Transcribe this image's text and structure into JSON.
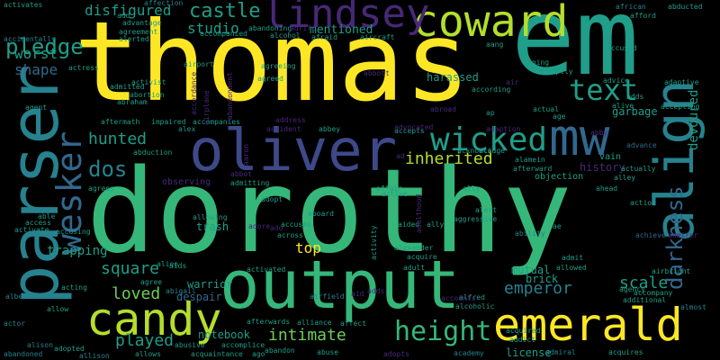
{
  "palette": {
    "yellow": "#fde725",
    "lime": "#b5de2b",
    "green": "#6ece58",
    "teal_green": "#35b779",
    "teal": "#1f9e89",
    "cyan": "#26828e",
    "blue": "#31688e",
    "indigo": "#3e4989",
    "purple": "#482878",
    "dark_purple": "#440154"
  },
  "words": [
    {
      "id": "thomas",
      "text": "thomas"
    },
    {
      "id": "dorothy",
      "text": "dorothy"
    },
    {
      "id": "em",
      "text": "em"
    },
    {
      "id": "parser",
      "text": "parser"
    },
    {
      "id": "output",
      "text": "output"
    },
    {
      "id": "oliver",
      "text": "oliver"
    },
    {
      "id": "coward",
      "text": "coward"
    },
    {
      "id": "lindsey",
      "text": "lindsey"
    },
    {
      "id": "mw",
      "text": "mw"
    },
    {
      "id": "align",
      "text": "align"
    },
    {
      "id": "candy",
      "text": "candy"
    },
    {
      "id": "emerald",
      "text": "emerald"
    },
    {
      "id": "wesker",
      "text": "wesker"
    },
    {
      "id": "wicked",
      "text": "wicked"
    },
    {
      "id": "text",
      "text": "text"
    },
    {
      "id": "height",
      "text": "height"
    },
    {
      "id": "darkness",
      "text": "darkness"
    },
    {
      "id": "pledge",
      "text": "pledge"
    },
    {
      "id": "castle",
      "text": "castle"
    },
    {
      "id": "disfigured",
      "text": "disfigured"
    },
    {
      "id": "dos",
      "text": "dos"
    },
    {
      "id": "hunted",
      "text": "hunted"
    },
    {
      "id": "square",
      "text": "square"
    },
    {
      "id": "loved",
      "text": "loved"
    },
    {
      "id": "played",
      "text": "played"
    },
    {
      "id": "intimate",
      "text": "intimate"
    },
    {
      "id": "inherited",
      "text": "inherited"
    },
    {
      "id": "emperor",
      "text": "emperor"
    },
    {
      "id": "scale",
      "text": "scale"
    },
    {
      "id": "worst",
      "text": "worst"
    },
    {
      "id": "shape",
      "text": "shape"
    },
    {
      "id": "studio",
      "text": "studio"
    },
    {
      "id": "mentioned",
      "text": "mentioned"
    },
    {
      "id": "top",
      "text": "top"
    },
    {
      "id": "trapping",
      "text": "trapping"
    },
    {
      "id": "devoured",
      "text": "devoured"
    },
    {
      "id": "garbage",
      "text": "garbage"
    },
    {
      "id": "history",
      "text": "history"
    },
    {
      "id": "notebook",
      "text": "notebook"
    },
    {
      "id": "mutual",
      "text": "mutual"
    },
    {
      "id": "brick",
      "text": "brick"
    },
    {
      "id": "license",
      "text": "license"
    },
    {
      "id": "warrior",
      "text": "warrior"
    },
    {
      "id": "despair",
      "text": "despair"
    },
    {
      "id": "trash",
      "text": "trash"
    },
    {
      "id": "harassed",
      "text": "harassed"
    },
    {
      "id": "vain",
      "text": "vain"
    },
    {
      "id": "objection",
      "text": "objection"
    },
    {
      "id": "alliance",
      "text": "alliance"
    },
    {
      "id": "academy",
      "text": "academy"
    },
    {
      "id": "abandoned",
      "text": "abandoned"
    },
    {
      "id": "adopted",
      "text": "adopted"
    },
    {
      "id": "ability",
      "text": "ability"
    },
    {
      "id": "accusing",
      "text": "accusing"
    },
    {
      "id": "activate",
      "text": "activate"
    },
    {
      "id": "actress",
      "text": "actress"
    },
    {
      "id": "airport",
      "text": "airport"
    },
    {
      "id": "affection",
      "text": "affection"
    },
    {
      "id": "african",
      "text": "african"
    },
    {
      "id": "abducted",
      "text": "abducted"
    },
    {
      "id": "afford",
      "text": "afford"
    },
    {
      "id": "accused",
      "text": "accused"
    },
    {
      "id": "advice",
      "text": "advice"
    },
    {
      "id": "abruptly",
      "text": "abruptly"
    },
    {
      "id": "according",
      "text": "according"
    },
    {
      "id": "accepting",
      "text": "accepting"
    },
    {
      "id": "aftermath",
      "text": "aftermath"
    },
    {
      "id": "impaired",
      "text": "impaired"
    },
    {
      "id": "accompanies",
      "text": "accompanies"
    },
    {
      "id": "acknowledge",
      "text": "acknowledge"
    },
    {
      "id": "afterward",
      "text": "afterward"
    },
    {
      "id": "abbey",
      "text": "abbey"
    },
    {
      "id": "accepts",
      "text": "accepts"
    },
    {
      "id": "aggressive",
      "text": "aggressive"
    },
    {
      "id": "alexander",
      "text": "alexander"
    },
    {
      "id": "acquire",
      "text": "acquire"
    },
    {
      "id": "admit",
      "text": "admit"
    },
    {
      "id": "allowed",
      "text": "allowed"
    },
    {
      "id": "adult",
      "text": "adult"
    },
    {
      "id": "alfred",
      "text": "alfred"
    },
    {
      "id": "alcoholic",
      "text": "alcoholic"
    },
    {
      "id": "acquired",
      "text": "acquired"
    },
    {
      "id": "addict",
      "text": "addict"
    },
    {
      "id": "admiral",
      "text": "admiral"
    },
    {
      "id": "acquires",
      "text": "acquires"
    },
    {
      "id": "accompany",
      "text": "accompany"
    },
    {
      "id": "additional",
      "text": "additional"
    },
    {
      "id": "airbright",
      "text": "airbright"
    },
    {
      "id": "almost",
      "text": "almost"
    },
    {
      "id": "agency",
      "text": "agency"
    },
    {
      "id": "actually",
      "text": "actually"
    },
    {
      "id": "action",
      "text": "action"
    },
    {
      "id": "alley",
      "text": "alley"
    },
    {
      "id": "ahead",
      "text": "ahead"
    },
    {
      "id": "advance",
      "text": "advance"
    },
    {
      "id": "achieve",
      "text": "achieve"
    },
    {
      "id": "activated",
      "text": "activated"
    },
    {
      "id": "across",
      "text": "across"
    },
    {
      "id": "accuses",
      "text": "accuses"
    },
    {
      "id": "allowing",
      "text": "allowing"
    },
    {
      "id": "adopt",
      "text": "adopt"
    },
    {
      "id": "admitting",
      "text": "admitting"
    },
    {
      "id": "observing",
      "text": "observing"
    },
    {
      "id": "afterwards",
      "text": "afterwards"
    },
    {
      "id": "accomplice",
      "text": "accomplice"
    },
    {
      "id": "acquaintance",
      "text": "acquaintance"
    },
    {
      "id": "abandon",
      "text": "abandon"
    },
    {
      "id": "abuse",
      "text": "abuse"
    },
    {
      "id": "affect",
      "text": "affect"
    },
    {
      "id": "abusive",
      "text": "abusive"
    },
    {
      "id": "alison",
      "text": "alison"
    },
    {
      "id": "allison",
      "text": "allison"
    },
    {
      "id": "allows",
      "text": "allows"
    },
    {
      "id": "agree",
      "text": "agree"
    },
    {
      "id": "abigail",
      "text": "abigail"
    },
    {
      "id": "acting",
      "text": "acting"
    },
    {
      "id": "albert",
      "text": "albert"
    },
    {
      "id": "actor",
      "text": "actor"
    },
    {
      "id": "access",
      "text": "access"
    },
    {
      "id": "able",
      "text": "able"
    },
    {
      "id": "agrees",
      "text": "agrees"
    },
    {
      "id": "abduction",
      "text": "abduction"
    },
    {
      "id": "alex",
      "text": "alex"
    },
    {
      "id": "admitted",
      "text": "admitted"
    },
    {
      "id": "abortion",
      "text": "abortion"
    },
    {
      "id": "abraham",
      "text": "abraham"
    },
    {
      "id": "activist",
      "text": "activist"
    },
    {
      "id": "agreeing",
      "text": "agreeing"
    },
    {
      "id": "agreed",
      "text": "agreed"
    },
    {
      "id": "aircraft",
      "text": "aircraft"
    },
    {
      "id": "afraid",
      "text": "afraid"
    },
    {
      "id": "alcohol",
      "text": "alcohol"
    },
    {
      "id": "abandoning",
      "text": "abandoning"
    },
    {
      "id": "accompanied",
      "text": "accompanied"
    },
    {
      "id": "agreement",
      "text": "agreement"
    },
    {
      "id": "alerted",
      "text": "alerted"
    },
    {
      "id": "advantage",
      "text": "advantage"
    },
    {
      "id": "add",
      "text": "add"
    },
    {
      "id": "activates",
      "text": "activates"
    },
    {
      "id": "accidentally",
      "text": "accidentally"
    },
    {
      "id": "aging",
      "text": "aging"
    },
    {
      "id": "aang",
      "text": "aang"
    },
    {
      "id": "actual",
      "text": "actual"
    },
    {
      "id": "age",
      "text": "age"
    },
    {
      "id": "alive",
      "text": "alive"
    },
    {
      "id": "acid",
      "text": "acid"
    },
    {
      "id": "alamein",
      "text": "alamein"
    },
    {
      "id": "adaptive",
      "text": "adaptive"
    },
    {
      "id": "affair",
      "text": "affair"
    },
    {
      "id": "active",
      "text": "active"
    },
    {
      "id": "aided",
      "text": "aided"
    },
    {
      "id": "ally",
      "text": "ally"
    },
    {
      "id": "alert",
      "text": "alert"
    },
    {
      "id": "aaron",
      "text": "aaron"
    },
    {
      "id": "agent",
      "text": "agent"
    },
    {
      "id": "address",
      "text": "address"
    },
    {
      "id": "abbott",
      "text": "abbott"
    },
    {
      "id": "advocated",
      "text": "advocated"
    },
    {
      "id": "activity",
      "text": "activity"
    },
    {
      "id": "adore",
      "text": "adore"
    },
    {
      "id": "airplane",
      "text": "airplane"
    },
    {
      "id": "abandonment",
      "text": "abandonment"
    },
    {
      "id": "accordance",
      "text": "accordance"
    },
    {
      "id": "air",
      "text": "air"
    },
    {
      "id": "airfield",
      "text": "airfield"
    },
    {
      "id": "alien",
      "text": "alien"
    },
    {
      "id": "accident",
      "text": "accident"
    },
    {
      "id": "ado",
      "text": "ado"
    },
    {
      "id": "aids",
      "text": "aids"
    },
    {
      "id": "aboard",
      "text": "aboard"
    },
    {
      "id": "abroad",
      "text": "abroad"
    },
    {
      "id": "abby",
      "text": "abby"
    },
    {
      "id": "adds",
      "text": "adds"
    },
    {
      "id": "adopts",
      "text": "adopts"
    },
    {
      "id": "allow",
      "text": "allow"
    },
    {
      "id": "adaption",
      "text": "adaption"
    },
    {
      "id": "adulthood",
      "text": "adulthood"
    },
    {
      "id": "ally2",
      "text": "ally"
    },
    {
      "id": "ae",
      "text": "ae"
    },
    {
      "id": "ap",
      "text": "ap"
    },
    {
      "id": "ad",
      "text": "ad"
    },
    {
      "id": "ago",
      "text": "ago"
    },
    {
      "id": "aid",
      "text": "aid"
    },
    {
      "id": "abbot",
      "text": "abbot"
    },
    {
      "id": "admirer",
      "text": "admirer"
    },
    {
      "id": "accounts",
      "text": "accounts"
    },
    {
      "id": "adds2",
      "text": "adds"
    },
    {
      "id": "adrift",
      "text": "adrift"
    }
  ]
}
